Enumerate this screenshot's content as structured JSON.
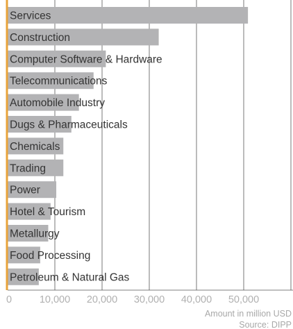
{
  "chart_data": {
    "type": "bar",
    "orientation": "horizontal",
    "categories": [
      "Services",
      "Construction",
      "Computer Software & Hardware",
      "Telecommunications",
      "Automobile Industry",
      "Dugs & Pharmaceuticals",
      "Chemicals",
      "Trading",
      "Power",
      "Hotel & Tourism",
      "Metallurgy",
      "Food Processing",
      "Petroleum & Natural Gas"
    ],
    "values": [
      50900,
      32000,
      20800,
      18200,
      15100,
      13500,
      11800,
      11800,
      10300,
      9100,
      8600,
      6900,
      6600
    ],
    "xticks": [
      "0",
      "10,000",
      "20,000",
      "30,000",
      "40,000",
      "50,000"
    ],
    "xlim": [
      0,
      60000
    ],
    "xlabel": "Amount in million USD",
    "source": "Source: DIPP",
    "grid": true,
    "colors": {
      "bar": "#b3b3b5",
      "axis": "#e8a33a",
      "grid": "#555555",
      "text": "#333333",
      "tick": "#b0b0b0"
    }
  }
}
